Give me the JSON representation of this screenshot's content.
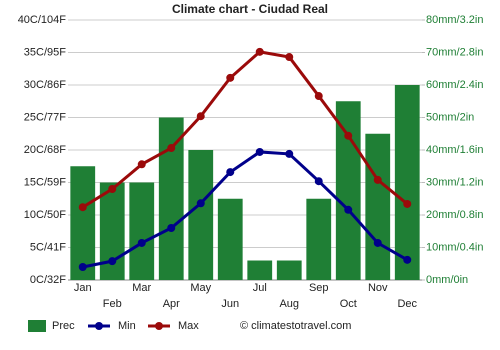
{
  "chart_data": {
    "type": "climate",
    "title": "Climate chart - Ciudad Real",
    "categories": [
      "Jan",
      "Feb",
      "Mar",
      "Apr",
      "May",
      "Jun",
      "Jul",
      "Aug",
      "Sep",
      "Oct",
      "Nov",
      "Dec"
    ],
    "series": [
      {
        "name": "Prec",
        "color": "#1f7f35",
        "axis": "y2",
        "values": [
          35,
          30,
          30,
          50,
          40,
          25,
          6,
          6,
          25,
          55,
          45,
          60
        ]
      },
      {
        "name": "Min",
        "color": "#00008b",
        "values": [
          2.0,
          2.9,
          5.7,
          8.0,
          11.8,
          16.6,
          19.7,
          19.4,
          15.2,
          10.8,
          5.7,
          3.1
        ]
      },
      {
        "name": "Max",
        "color": "#9b0a0a",
        "values": [
          11.2,
          14.0,
          17.8,
          20.3,
          25.2,
          31.1,
          35.1,
          34.3,
          28.3,
          22.2,
          15.4,
          11.7
        ]
      }
    ],
    "ylim": [
      0,
      40
    ],
    "yticks": [
      {
        "value": 0,
        "label": "0C/32F"
      },
      {
        "value": 5,
        "label": "5C/41F"
      },
      {
        "value": 10,
        "label": "10C/50F"
      },
      {
        "value": 15,
        "label": "15C/59F"
      },
      {
        "value": 20,
        "label": "20C/68F"
      },
      {
        "value": 25,
        "label": "25C/77F"
      },
      {
        "value": 30,
        "label": "30C/86F"
      },
      {
        "value": 35,
        "label": "35C/95F"
      },
      {
        "value": 40,
        "label": "40C/104F"
      }
    ],
    "y2lim": [
      0,
      80
    ],
    "y2ticks": [
      {
        "value": 0,
        "label": "0mm/0in"
      },
      {
        "value": 10,
        "label": "10mm/0.4in"
      },
      {
        "value": 20,
        "label": "20mm/0.8in"
      },
      {
        "value": 30,
        "label": "30mm/1.2in"
      },
      {
        "value": 40,
        "label": "40mm/1.6in"
      },
      {
        "value": 50,
        "label": "50mm/2in"
      },
      {
        "value": 60,
        "label": "60mm/2.4in"
      },
      {
        "value": 70,
        "label": "70mm/2.8in"
      },
      {
        "value": 80,
        "label": "80mm/3.2in"
      }
    ],
    "grid": true,
    "source": "© climatestotravel.com"
  }
}
